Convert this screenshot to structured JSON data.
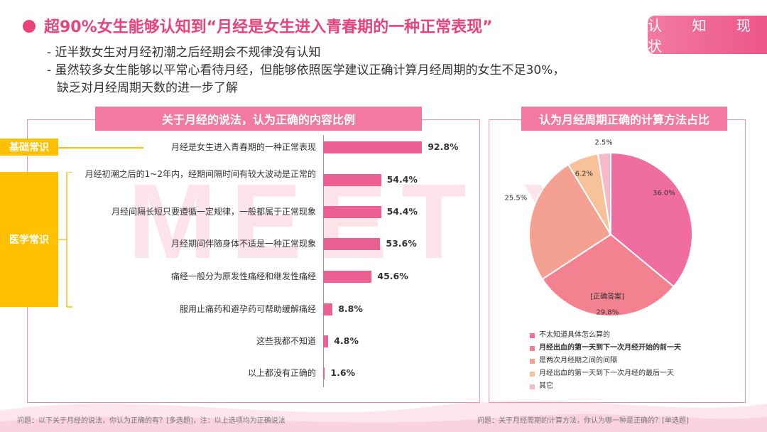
{
  "header": {
    "title": "超90%女生能够认知到“月经是女生进入青春期的一种正常表现”",
    "tag": "认 知 现 状",
    "bullets": [
      "- 近半数女生对月经初潮之后经期会不规律没有认知",
      "- 虽然较多女生能够以平常心看待月经，但能够依照医学建议正确计算月经周期的女生不足30%，",
      "缺乏对月经周期天数的进一步了解"
    ]
  },
  "watermark": "MEET YO",
  "left_panel": {
    "heading": "关于月经的说法，认为正确的内容比例",
    "categories": {
      "basic": "基础常识",
      "medical": "医学常识"
    },
    "footnote": "问题：以下关于月经的说法，你认为正确的有？[多选题]，注：以上选项均为正确说法"
  },
  "right_panel": {
    "heading": "认为月经周期正确的计算方法占比",
    "correct_tag": "[正确答案]",
    "footnote": "问题：关于月经周期的计算方法，你认为哪一种是正确的？[单选题]"
  },
  "colors": {
    "accent": "#e8437b",
    "bar": "#ec5f92",
    "category": "#ffc000",
    "pie": [
      "#f06da0",
      "#f3818f",
      "#f4a093",
      "#f7c29a",
      "#f7b8c8"
    ]
  },
  "chart_data": [
    {
      "type": "bar",
      "orientation": "horizontal",
      "title": "关于月经的说法，认为正确的内容比例",
      "categories": [
        "月经是女生进入青春期的一种正常表现",
        "月经初潮之后的1~2年内，经期间隔时间有较大波动是正常的",
        "月经间隔长短只要遵循一定规律，一般都属于正常现象",
        "月经期间伴随身体不适是一种正常现象",
        "痛经一般分为原发性痛经和继发性痛经",
        "服用止痛药和避孕药可帮助缓解痛经",
        "这些我都不知道",
        "以上都没有正确的"
      ],
      "values": [
        92.8,
        54.4,
        54.4,
        53.6,
        45.6,
        8.8,
        4.8,
        1.6
      ],
      "value_labels": [
        "92.8%",
        "54.4%",
        "54.4%",
        "53.6%",
        "45.6%",
        "8.8%",
        "4.8%",
        "1.6%"
      ],
      "groups": [
        {
          "name": "基础常识",
          "items": [
            0
          ]
        },
        {
          "name": "医学常识",
          "items": [
            1,
            2,
            3,
            4,
            5
          ]
        }
      ]
    },
    {
      "type": "pie",
      "title": "认为月经周期正确的计算方法占比",
      "categories": [
        "不太知道具体怎么算的",
        "月经出血的第一天到下一次月经开始的前一天",
        "是两次月经期之间的间隔",
        "月经出血的第一天到下一次月经的最后一天",
        "其它"
      ],
      "values": [
        36.0,
        29.8,
        25.5,
        6.2,
        2.5
      ],
      "value_labels": [
        "36.0%",
        "29.8%",
        "25.5%",
        "6.2%",
        "2.5%"
      ],
      "correct_index": 1,
      "legend_position": "bottom"
    }
  ]
}
